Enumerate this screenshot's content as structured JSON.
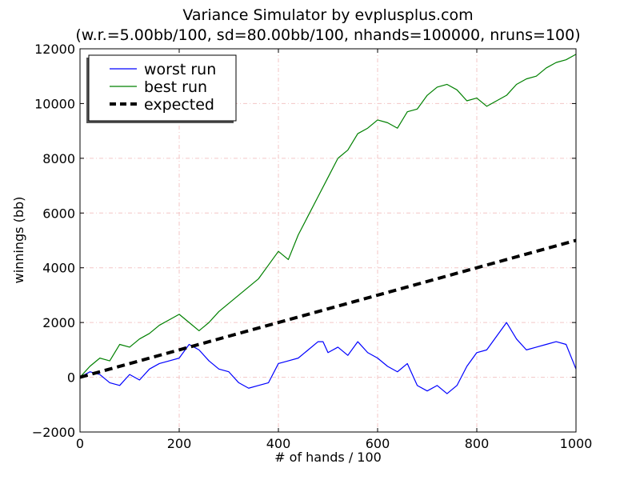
{
  "chart_data": {
    "type": "line",
    "title": "Variance Simulator by evplusplus.com",
    "subtitle": "(w.r.=5.00bb/100, sd=80.00bb/100, nhands=100000, nruns=100)",
    "xlabel": "# of hands / 100",
    "ylabel": "winnings (bb)",
    "xlim": [
      0,
      1000
    ],
    "ylim": [
      -2000,
      12000
    ],
    "xticks": [
      0,
      200,
      400,
      600,
      800,
      1000
    ],
    "yticks": [
      -2000,
      0,
      2000,
      4000,
      6000,
      8000,
      10000,
      12000
    ],
    "xtick_labels": [
      "0",
      "200",
      "400",
      "600",
      "800",
      "1000"
    ],
    "ytick_labels": [
      "−2000",
      "0",
      "2000",
      "4000",
      "6000",
      "8000",
      "10000",
      "12000"
    ],
    "grid": true,
    "legend_position": "top-left",
    "series": [
      {
        "name": "worst run",
        "color": "#0000ff",
        "style": "solid",
        "x": [
          0,
          20,
          40,
          60,
          80,
          100,
          120,
          140,
          160,
          180,
          200,
          220,
          240,
          260,
          280,
          300,
          320,
          340,
          360,
          380,
          400,
          420,
          440,
          460,
          480,
          490,
          500,
          520,
          540,
          560,
          580,
          600,
          620,
          640,
          660,
          680,
          700,
          720,
          740,
          760,
          780,
          800,
          820,
          840,
          860,
          880,
          900,
          920,
          940,
          960,
          980,
          1000
        ],
        "y": [
          0,
          200,
          100,
          -200,
          -300,
          100,
          -100,
          300,
          500,
          600,
          700,
          1200,
          1000,
          600,
          300,
          200,
          -200,
          -400,
          -300,
          -200,
          500,
          600,
          700,
          1000,
          1300,
          1300,
          900,
          1100,
          800,
          1300,
          900,
          700,
          400,
          200,
          500,
          -300,
          -500,
          -300,
          -600,
          -300,
          400,
          900,
          1000,
          1500,
          2000,
          1400,
          1000,
          1100,
          1200,
          1300,
          1200,
          300
        ]
      },
      {
        "name": "best run",
        "color": "#008000",
        "style": "solid",
        "x": [
          0,
          20,
          40,
          60,
          80,
          100,
          120,
          140,
          160,
          180,
          200,
          220,
          240,
          260,
          280,
          300,
          320,
          340,
          360,
          380,
          400,
          420,
          440,
          460,
          480,
          500,
          520,
          540,
          560,
          580,
          600,
          620,
          640,
          660,
          680,
          700,
          720,
          740,
          760,
          780,
          800,
          820,
          840,
          860,
          880,
          900,
          920,
          940,
          960,
          980,
          1000
        ],
        "y": [
          0,
          400,
          700,
          600,
          1200,
          1100,
          1400,
          1600,
          1900,
          2100,
          2300,
          2000,
          1700,
          2000,
          2400,
          2700,
          3000,
          3300,
          3600,
          4100,
          4600,
          4300,
          5200,
          5900,
          6600,
          7300,
          8000,
          8300,
          8900,
          9100,
          9400,
          9300,
          9100,
          9700,
          9800,
          10300,
          10600,
          10700,
          10500,
          10100,
          10200,
          9900,
          10100,
          10300,
          10700,
          10900,
          11000,
          11300,
          11500,
          11600,
          11800
        ]
      },
      {
        "name": "expected",
        "color": "#000000",
        "style": "dashed",
        "x": [
          0,
          1000
        ],
        "y": [
          0,
          5000
        ]
      }
    ]
  }
}
